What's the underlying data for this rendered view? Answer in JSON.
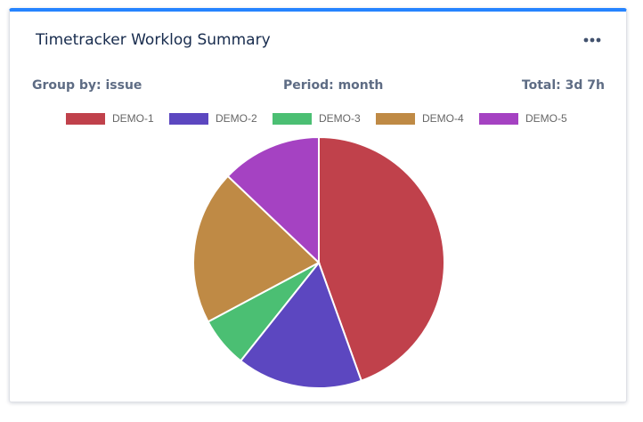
{
  "gadget": {
    "title": "Timetracker Worklog Summary",
    "accent_color": "#2684ff",
    "menu_icon": "more-horizontal-icon"
  },
  "meta": {
    "group_by": "Group by: issue",
    "period": "Period: month",
    "total": "Total: 3d 7h"
  },
  "chart_data": {
    "type": "pie",
    "title": "",
    "legend_placement": "top",
    "start_angle_deg": 0,
    "direction": "clockwise",
    "series": [
      {
        "name": "DEMO-1",
        "value": 44.5,
        "color": "#c0414b"
      },
      {
        "name": "DEMO-2",
        "value": 16.2,
        "color": "#5c47c0"
      },
      {
        "name": "DEMO-3",
        "value": 6.5,
        "color": "#4bbf73"
      },
      {
        "name": "DEMO-4",
        "value": 19.9,
        "color": "#bf8a45"
      },
      {
        "name": "DEMO-5",
        "value": 12.9,
        "color": "#a542c2"
      }
    ]
  }
}
